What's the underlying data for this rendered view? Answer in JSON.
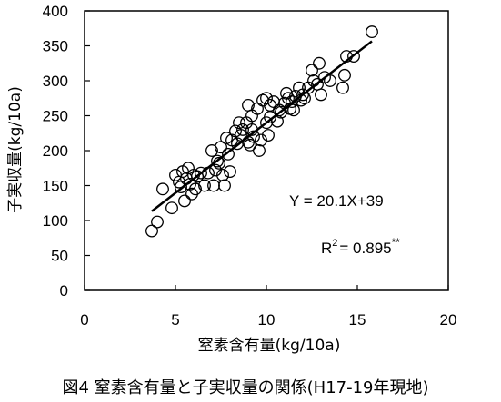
{
  "chart_data": {
    "type": "scatter",
    "title": "",
    "xlabel": "窒素含有量(kg/10a)",
    "ylabel": "子実収量(kg/10a)",
    "xlim": [
      0,
      20
    ],
    "ylim": [
      0,
      400
    ],
    "xticks": [
      "0",
      "5",
      "10",
      "15",
      "20"
    ],
    "yticks": [
      "0",
      "50",
      "100",
      "150",
      "200",
      "250",
      "300",
      "350",
      "400"
    ],
    "grid": false,
    "points": [
      {
        "x": 3.7,
        "y": 85
      },
      {
        "x": 4.0,
        "y": 98
      },
      {
        "x": 4.3,
        "y": 145
      },
      {
        "x": 4.8,
        "y": 118
      },
      {
        "x": 5.0,
        "y": 165
      },
      {
        "x": 5.2,
        "y": 155
      },
      {
        "x": 5.3,
        "y": 148
      },
      {
        "x": 5.4,
        "y": 170
      },
      {
        "x": 5.5,
        "y": 128
      },
      {
        "x": 5.6,
        "y": 160
      },
      {
        "x": 5.7,
        "y": 175
      },
      {
        "x": 5.8,
        "y": 152
      },
      {
        "x": 5.9,
        "y": 138
      },
      {
        "x": 6.0,
        "y": 165
      },
      {
        "x": 6.1,
        "y": 145
      },
      {
        "x": 6.2,
        "y": 163
      },
      {
        "x": 6.4,
        "y": 168
      },
      {
        "x": 6.6,
        "y": 150
      },
      {
        "x": 6.8,
        "y": 168
      },
      {
        "x": 7.0,
        "y": 200
      },
      {
        "x": 7.1,
        "y": 150
      },
      {
        "x": 7.2,
        "y": 172
      },
      {
        "x": 7.3,
        "y": 185
      },
      {
        "x": 7.4,
        "y": 182
      },
      {
        "x": 7.5,
        "y": 205
      },
      {
        "x": 7.6,
        "y": 165
      },
      {
        "x": 7.7,
        "y": 150
      },
      {
        "x": 7.8,
        "y": 218
      },
      {
        "x": 7.9,
        "y": 195
      },
      {
        "x": 8.0,
        "y": 170
      },
      {
        "x": 8.1,
        "y": 215
      },
      {
        "x": 8.3,
        "y": 228
      },
      {
        "x": 8.4,
        "y": 210
      },
      {
        "x": 8.5,
        "y": 240
      },
      {
        "x": 8.6,
        "y": 222
      },
      {
        "x": 8.7,
        "y": 230
      },
      {
        "x": 8.9,
        "y": 240
      },
      {
        "x": 9.0,
        "y": 212
      },
      {
        "x": 9.1,
        "y": 208
      },
      {
        "x": 9.2,
        "y": 230
      },
      {
        "x": 9.0,
        "y": 265
      },
      {
        "x": 9.2,
        "y": 250
      },
      {
        "x": 9.3,
        "y": 220
      },
      {
        "x": 9.5,
        "y": 260
      },
      {
        "x": 9.6,
        "y": 200
      },
      {
        "x": 9.7,
        "y": 215
      },
      {
        "x": 9.8,
        "y": 272
      },
      {
        "x": 10.0,
        "y": 275
      },
      {
        "x": 10.0,
        "y": 240
      },
      {
        "x": 10.1,
        "y": 222
      },
      {
        "x": 10.2,
        "y": 248
      },
      {
        "x": 10.2,
        "y": 265
      },
      {
        "x": 10.4,
        "y": 270
      },
      {
        "x": 10.6,
        "y": 242
      },
      {
        "x": 10.7,
        "y": 258
      },
      {
        "x": 10.8,
        "y": 255
      },
      {
        "x": 11.0,
        "y": 268
      },
      {
        "x": 11.1,
        "y": 282
      },
      {
        "x": 11.2,
        "y": 275
      },
      {
        "x": 11.3,
        "y": 260
      },
      {
        "x": 11.4,
        "y": 270
      },
      {
        "x": 11.5,
        "y": 258
      },
      {
        "x": 11.6,
        "y": 278
      },
      {
        "x": 11.8,
        "y": 290
      },
      {
        "x": 11.9,
        "y": 272
      },
      {
        "x": 12.0,
        "y": 280
      },
      {
        "x": 12.1,
        "y": 275
      },
      {
        "x": 12.3,
        "y": 290
      },
      {
        "x": 12.5,
        "y": 315
      },
      {
        "x": 12.6,
        "y": 300
      },
      {
        "x": 12.9,
        "y": 325
      },
      {
        "x": 12.8,
        "y": 295
      },
      {
        "x": 13.0,
        "y": 280
      },
      {
        "x": 13.2,
        "y": 305
      },
      {
        "x": 13.5,
        "y": 300
      },
      {
        "x": 14.2,
        "y": 290
      },
      {
        "x": 14.3,
        "y": 308
      },
      {
        "x": 14.4,
        "y": 335
      },
      {
        "x": 14.8,
        "y": 335
      },
      {
        "x": 15.8,
        "y": 370
      }
    ],
    "regression": {
      "slope": 20.1,
      "intercept": 39,
      "x_range": [
        3.7,
        15.8
      ]
    },
    "annotations": {
      "equation": "Y = 20.1X+39",
      "r2_prefix": "R",
      "r2_sup": "2",
      "r2_value": "= 0.895",
      "r2_sig": "**"
    }
  },
  "caption": "図4  窒素含有量と子実収量の関係(H17-19年現地)"
}
